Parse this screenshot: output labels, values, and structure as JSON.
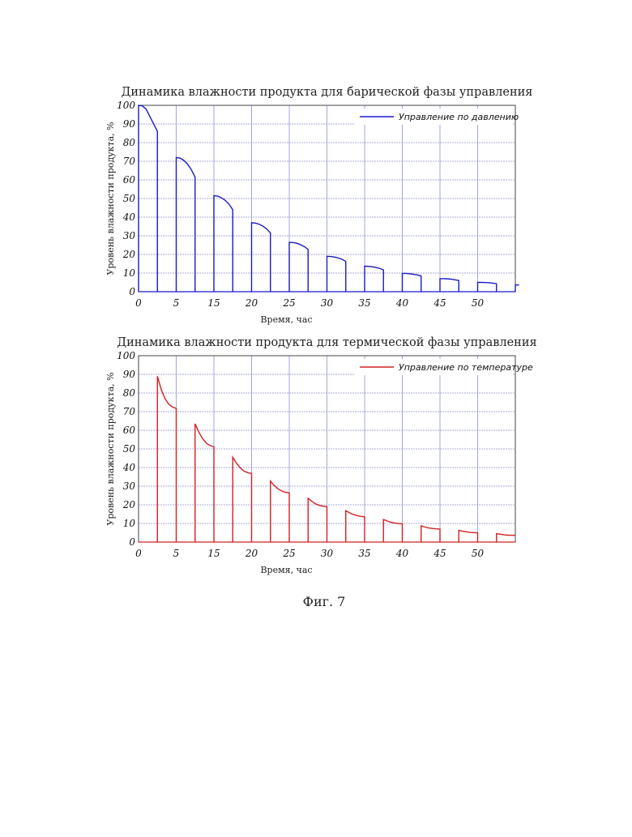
{
  "chart_data": [
    {
      "type": "line",
      "title": "Динамика влажности продукта для барической фазы управления",
      "xlabel": "Время,  час",
      "ylabel": "Уровень влажности продукта,  %",
      "xlim": [
        0,
        50
      ],
      "ylim": [
        0,
        100
      ],
      "xticks": [
        "0",
        "5",
        "15",
        "20",
        "25",
        "30",
        "35",
        "40",
        "45",
        "50"
      ],
      "yticks": [
        "0",
        "10",
        "20",
        "30",
        "40",
        "50",
        "60",
        "70",
        "80",
        "90",
        "100"
      ],
      "grid": true,
      "legend_position": "top-right",
      "color": "#1a1ac8",
      "series": [
        {
          "name": "Управление по давлению",
          "segments": [
            {
              "x": [
                0,
                0.5,
                1,
                1.5,
                2.5
              ],
              "y": [
                100,
                99.7,
                98,
                94,
                86
              ]
            },
            {
              "x": [
                5,
                5.5,
                6,
                6.5,
                7,
                7.5
              ],
              "y": [
                72,
                71.7,
                70.5,
                68.5,
                65.5,
                61.5
              ]
            },
            {
              "x": [
                10,
                10.5,
                11,
                11.5,
                12,
                12.5
              ],
              "y": [
                51.5,
                51.3,
                50.4,
                49.0,
                47.0,
                44.0
              ]
            },
            {
              "x": [
                15,
                15.5,
                16,
                16.5,
                17,
                17.5
              ],
              "y": [
                37,
                36.8,
                36.2,
                35.2,
                33.7,
                31.5
              ]
            },
            {
              "x": [
                20,
                20.5,
                21,
                21.5,
                22,
                22.5
              ],
              "y": [
                26.5,
                26.4,
                26.0,
                25.2,
                24.2,
                22.7
              ]
            },
            {
              "x": [
                25,
                25.5,
                26,
                26.5,
                27,
                27.5
              ],
              "y": [
                19,
                18.9,
                18.6,
                18.1,
                17.4,
                16.3
              ]
            },
            {
              "x": [
                30,
                30.5,
                31,
                31.5,
                32,
                32.5
              ],
              "y": [
                13.7,
                13.6,
                13.4,
                13.0,
                12.5,
                11.7
              ]
            },
            {
              "x": [
                35,
                35.5,
                36,
                36.5,
                37,
                37.5
              ],
              "y": [
                9.8,
                9.8,
                9.6,
                9.3,
                9.0,
                8.4
              ]
            },
            {
              "x": [
                40,
                40.5,
                41,
                41.5,
                42,
                42.5
              ],
              "y": [
                7.0,
                7.0,
                6.9,
                6.7,
                6.4,
                6.0
              ]
            },
            {
              "x": [
                45,
                45.5,
                46,
                46.5,
                47,
                47.5
              ],
              "y": [
                5.0,
                5.0,
                4.9,
                4.8,
                4.6,
                4.3
              ]
            },
            {
              "x": [
                50,
                50.5
              ],
              "y": [
                3.6,
                3.6
              ]
            }
          ]
        }
      ]
    },
    {
      "type": "line",
      "title": "Динамика влажности продукта для термической фазы управления",
      "xlabel": "Время,  час",
      "ylabel": "Уровень влажности продукта,  %",
      "xlim": [
        0,
        50
      ],
      "ylim": [
        0,
        100
      ],
      "xticks": [
        "0",
        "5",
        "15",
        "20",
        "25",
        "30",
        "35",
        "40",
        "45",
        "50"
      ],
      "yticks": [
        "0",
        "10",
        "20",
        "30",
        "40",
        "50",
        "60",
        "70",
        "80",
        "90",
        "100"
      ],
      "grid": true,
      "legend_position": "top-right",
      "color": "#d42020",
      "series": [
        {
          "name": "Управление по температуре",
          "segments": [
            {
              "x": [
                2.5,
                3,
                3.5,
                4,
                4.5,
                5
              ],
              "y": [
                89,
                82,
                77,
                74,
                72.5,
                71.7
              ]
            },
            {
              "x": [
                7.5,
                8,
                8.5,
                9,
                9.5,
                10
              ],
              "y": [
                63.5,
                59,
                55.5,
                53,
                51.8,
                51.2
              ]
            },
            {
              "x": [
                12.5,
                13,
                13.5,
                14,
                14.5,
                15
              ],
              "y": [
                45.5,
                42.3,
                39.8,
                38.1,
                37.2,
                36.8
              ]
            },
            {
              "x": [
                17.5,
                18,
                18.5,
                19,
                19.5,
                20
              ],
              "y": [
                32.7,
                30.4,
                28.6,
                27.4,
                26.7,
                26.4
              ]
            },
            {
              "x": [
                22.5,
                23,
                23.5,
                24,
                24.5,
                25
              ],
              "y": [
                23.5,
                21.8,
                20.5,
                19.7,
                19.2,
                19.0
              ]
            },
            {
              "x": [
                27.5,
                28,
                28.5,
                29,
                29.5,
                30
              ],
              "y": [
                16.8,
                15.7,
                14.8,
                14.2,
                13.8,
                13.6
              ]
            },
            {
              "x": [
                32.5,
                33,
                33.5,
                34,
                34.5,
                35
              ],
              "y": [
                12.1,
                11.3,
                10.6,
                10.2,
                9.9,
                9.8
              ]
            },
            {
              "x": [
                37.5,
                38,
                38.5,
                39,
                39.5,
                40
              ],
              "y": [
                8.7,
                8.1,
                7.6,
                7.3,
                7.1,
                7.0
              ]
            },
            {
              "x": [
                42.5,
                43,
                43.5,
                44,
                44.5,
                45
              ],
              "y": [
                6.3,
                5.8,
                5.5,
                5.2,
                5.1,
                5.0
              ]
            },
            {
              "x": [
                47.5,
                48,
                48.5,
                49,
                49.5,
                50
              ],
              "y": [
                4.5,
                4.2,
                3.9,
                3.7,
                3.65,
                3.6
              ]
            }
          ]
        }
      ]
    }
  ],
  "caption": "Фиг. 7"
}
